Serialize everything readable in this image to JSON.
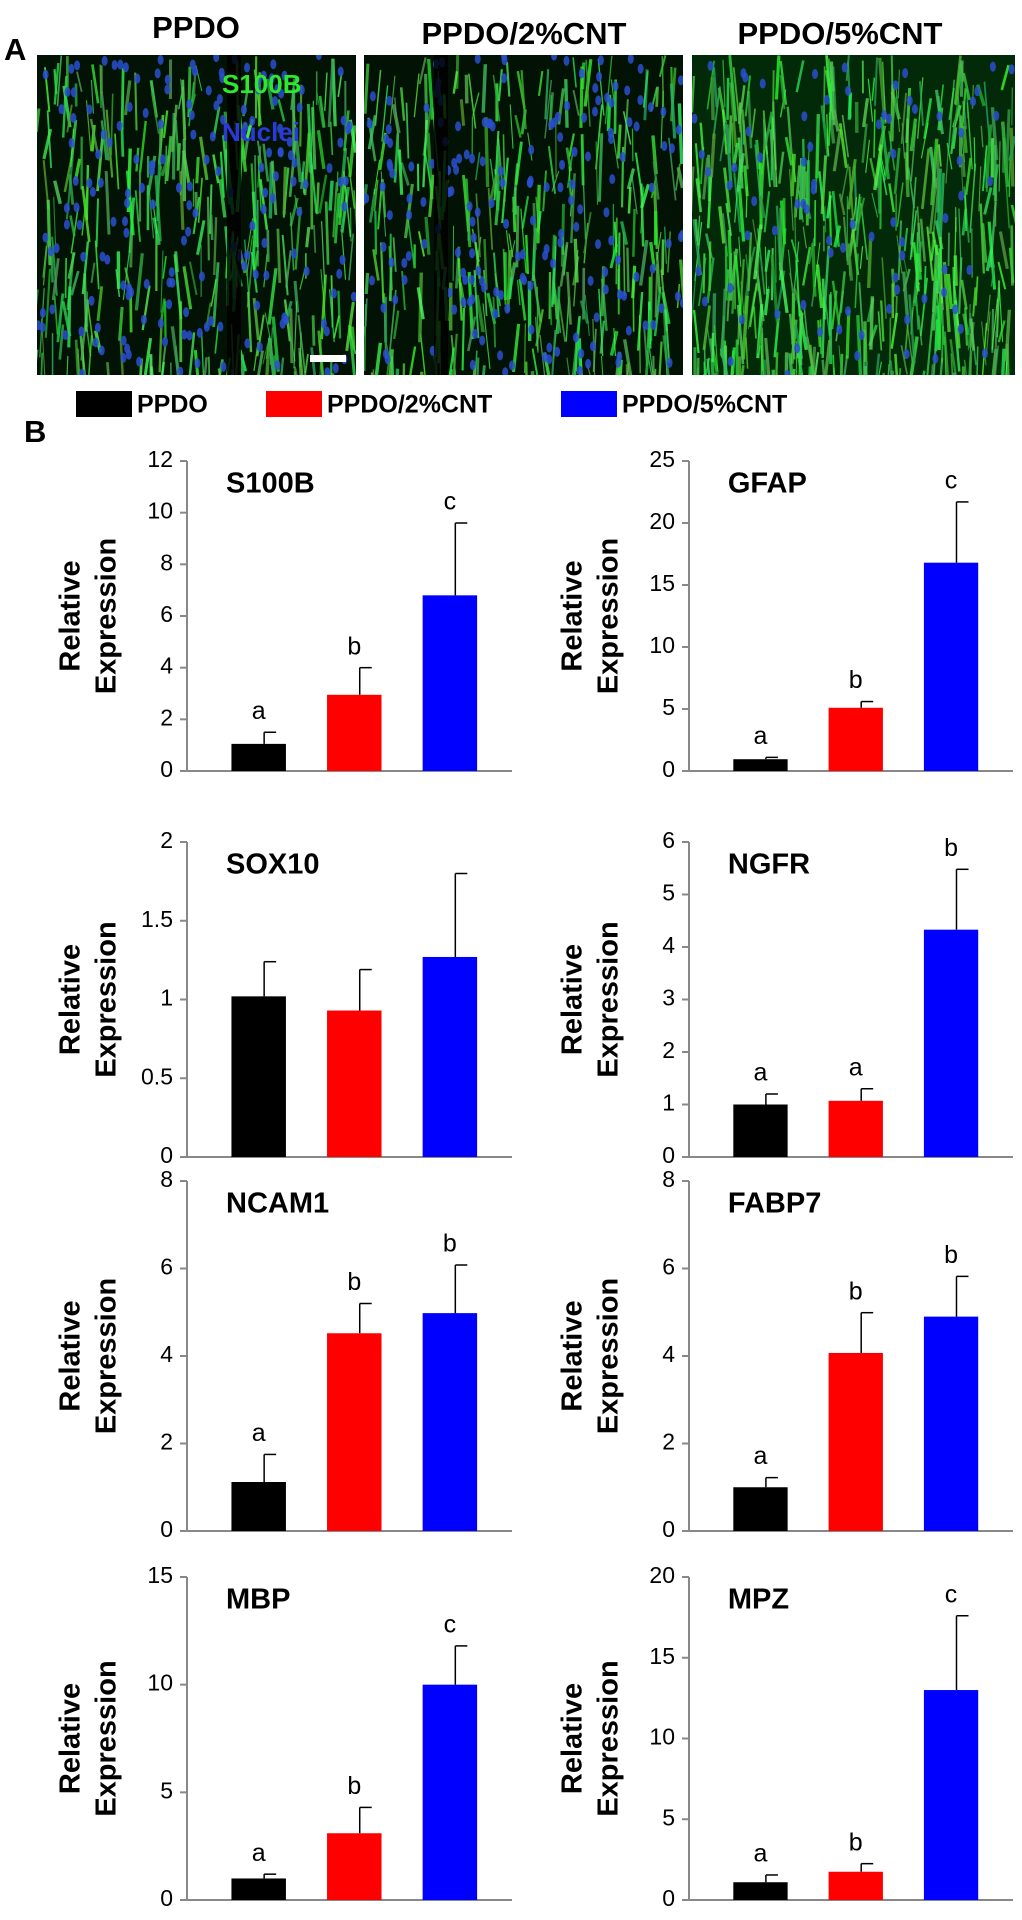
{
  "panel_a": {
    "label": "A",
    "titles": [
      "PPDO",
      "PPDO/2%CNT",
      "PPDO/5%CNT"
    ],
    "stain_labels": [
      "S100B",
      "Nuclei"
    ]
  },
  "panel_b": {
    "label": "B"
  },
  "legend": [
    {
      "name": "PPDO",
      "color": "#000000"
    },
    {
      "name": "PPDO/2%CNT",
      "color": "#ff0000"
    },
    {
      "name": "PPDO/5%CNT",
      "color": "#0000ff"
    }
  ],
  "chart_data": [
    {
      "type": "bar",
      "title": "S100B",
      "ylabel": [
        "Relative",
        "Expression"
      ],
      "values": [
        1.05,
        2.95,
        6.8
      ],
      "errors": [
        0.45,
        1.05,
        2.8
      ],
      "annotations": [
        "a",
        "b",
        "c"
      ],
      "ylim": [
        0,
        12
      ],
      "yticks": [
        0,
        2,
        4,
        6,
        8,
        10,
        12
      ]
    },
    {
      "type": "bar",
      "title": "GFAP",
      "ylabel": [
        "Relative",
        "Expression"
      ],
      "values": [
        0.95,
        5.1,
        16.8
      ],
      "errors": [
        0.15,
        0.5,
        4.9
      ],
      "annotations": [
        "a",
        "b",
        "c"
      ],
      "ylim": [
        0,
        25
      ],
      "yticks": [
        0,
        5,
        10,
        15,
        20,
        25
      ]
    },
    {
      "type": "bar",
      "title": "SOX10",
      "ylabel": [
        "Relative",
        "Expression"
      ],
      "values": [
        1.02,
        0.93,
        1.27
      ],
      "errors": [
        0.22,
        0.26,
        0.53
      ],
      "ylim": [
        0,
        2
      ],
      "yticks": [
        0,
        0.5,
        1,
        1.5,
        2
      ]
    },
    {
      "type": "bar",
      "title": "NGFR",
      "ylabel": [
        "Relative",
        "Expression"
      ],
      "values": [
        1.0,
        1.07,
        4.33
      ],
      "errors": [
        0.2,
        0.23,
        1.15
      ],
      "annotations": [
        "a",
        "a",
        "b"
      ],
      "ylim": [
        0,
        6
      ],
      "yticks": [
        0,
        1,
        2,
        3,
        4,
        5,
        6
      ]
    },
    {
      "type": "bar",
      "title": "NCAM1",
      "ylabel": [
        "Relative",
        "Expression"
      ],
      "values": [
        1.12,
        4.52,
        4.98
      ],
      "errors": [
        0.63,
        0.68,
        1.1
      ],
      "annotations": [
        "a",
        "b",
        "b"
      ],
      "ylim": [
        0,
        8
      ],
      "yticks": [
        0,
        2,
        4,
        6,
        8
      ]
    },
    {
      "type": "bar",
      "title": "FABP7",
      "ylabel": [
        "Relative",
        "Expression"
      ],
      "values": [
        1.0,
        4.07,
        4.9
      ],
      "errors": [
        0.22,
        0.92,
        0.92
      ],
      "annotations": [
        "a",
        "b",
        "b"
      ],
      "ylim": [
        0,
        8
      ],
      "yticks": [
        0,
        2,
        4,
        6,
        8
      ]
    },
    {
      "type": "bar",
      "title": "MBP",
      "ylabel": [
        "Relative",
        "Expression"
      ],
      "values": [
        1.0,
        3.1,
        10.0
      ],
      "errors": [
        0.2,
        1.2,
        1.8
      ],
      "annotations": [
        "a",
        "b",
        "c"
      ],
      "ylim": [
        0,
        15
      ],
      "yticks": [
        0,
        5,
        10,
        15
      ]
    },
    {
      "type": "bar",
      "title": "MPZ",
      "ylabel": [
        "Relative",
        "Expression"
      ],
      "values": [
        1.1,
        1.75,
        13.0
      ],
      "errors": [
        0.45,
        0.5,
        4.6
      ],
      "annotations": [
        "a",
        "b",
        "c"
      ],
      "ylim": [
        0,
        20
      ],
      "yticks": [
        0,
        5,
        10,
        15,
        20
      ]
    }
  ]
}
